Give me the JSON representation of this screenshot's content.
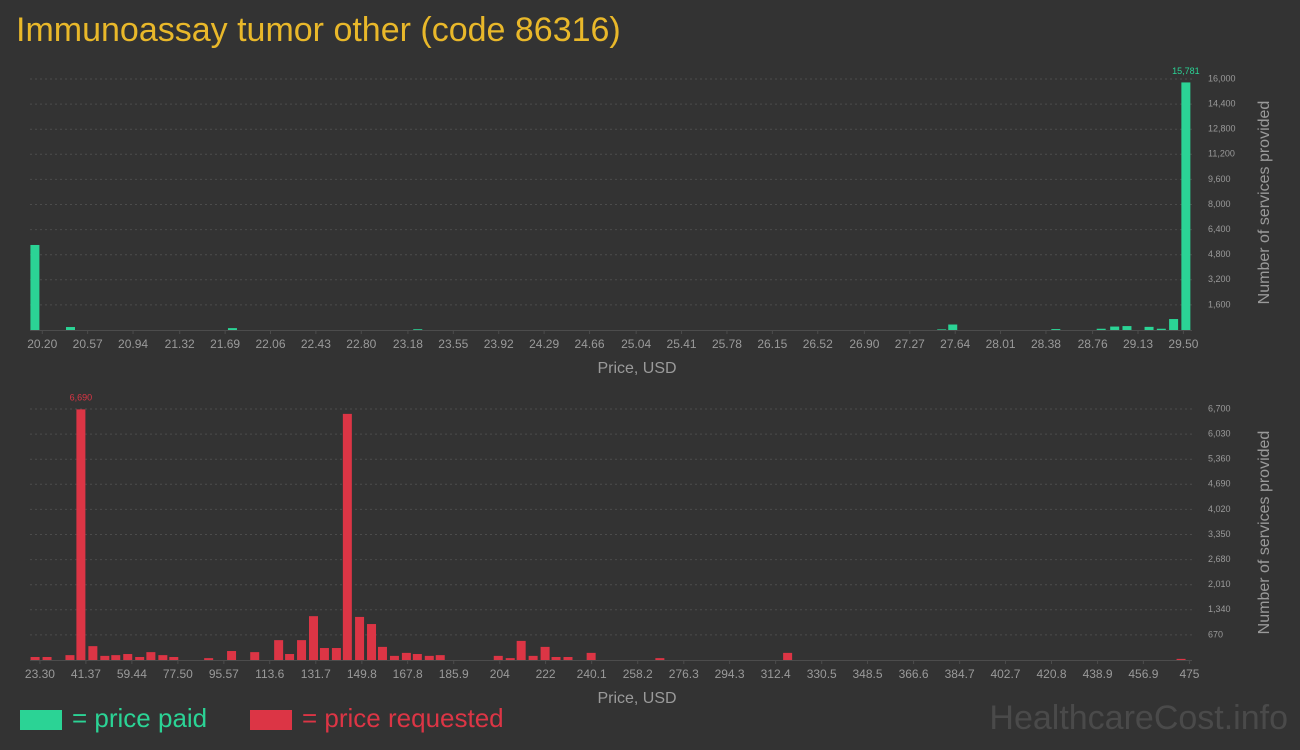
{
  "title": "Immunoassay tumor other (code 86316)",
  "watermark": "HealthcareCost.info",
  "chart_data": [
    {
      "type": "bar",
      "x_label": "Price, USD",
      "y_label": "Number of services provided",
      "xlim": [
        20.1,
        29.57
      ],
      "ylim": [
        0,
        16000
      ],
      "grid": true,
      "xticks": [
        {
          "value": 20.2,
          "label": "20.20"
        },
        20.57,
        20.94,
        21.32,
        21.69,
        22.06,
        22.43,
        {
          "value": 22.8,
          "label": "22.80"
        },
        23.18,
        23.55,
        23.92,
        24.29,
        24.66,
        25.04,
        25.41,
        25.78,
        26.15,
        26.52,
        {
          "value": 26.9,
          "label": "26.90"
        },
        27.27,
        27.64,
        28.01,
        28.38,
        28.76,
        29.13,
        {
          "value": 29.5,
          "label": "29.50"
        }
      ],
      "yticks": [
        {
          "value": 1600,
          "label": "1,600"
        },
        {
          "value": 3200,
          "label": "3,200"
        },
        {
          "value": 4800,
          "label": "4,800"
        },
        {
          "value": 6400,
          "label": "6,400"
        },
        {
          "value": 8000,
          "label": "8,000"
        },
        {
          "value": 9600,
          "label": "9,600"
        },
        {
          "value": 11200,
          "label": "11,200"
        },
        {
          "value": 12800,
          "label": "12,800"
        },
        {
          "value": 14400,
          "label": "14,400"
        },
        {
          "value": 16000,
          "label": "16,000"
        }
      ],
      "series": [
        {
          "name": "= price paid",
          "color": "#2bd395",
          "x": [
            20.14,
            20.43,
            21.75,
            23.26,
            27.53,
            27.62,
            28.46,
            28.83,
            28.94,
            29.04,
            29.22,
            29.32,
            29.42,
            29.52
          ],
          "values": [
            5420,
            190,
            120,
            50,
            40,
            350,
            60,
            80,
            220,
            250,
            200,
            80,
            700,
            15781
          ],
          "value_labels": [
            null,
            null,
            null,
            null,
            null,
            null,
            null,
            null,
            null,
            null,
            null,
            null,
            null,
            "15,781"
          ]
        }
      ]
    },
    {
      "type": "bar",
      "x_label": "Price, USD",
      "y_label": "Number of services provided",
      "xlim": [
        19.4,
        476
      ],
      "ylim": [
        0,
        6700
      ],
      "grid": true,
      "xticks": [
        {
          "value": 23.3,
          "label": "23.30"
        },
        41.37,
        59.44,
        {
          "value": 77.5,
          "label": "77.50"
        },
        95.57,
        113.6,
        131.7,
        149.8,
        167.8,
        185.9,
        204,
        222,
        240.1,
        258.2,
        276.3,
        294.3,
        312.4,
        330.5,
        348.5,
        366.6,
        384.7,
        402.7,
        420.8,
        438.9,
        456.9,
        475
      ],
      "yticks": [
        670,
        {
          "value": 1340,
          "label": "1,340"
        },
        {
          "value": 2010,
          "label": "2,010"
        },
        {
          "value": 2680,
          "label": "2,680"
        },
        {
          "value": 3350,
          "label": "3,350"
        },
        {
          "value": 4020,
          "label": "4,020"
        },
        {
          "value": 4690,
          "label": "4,690"
        },
        {
          "value": 5360,
          "label": "5,360"
        },
        {
          "value": 6030,
          "label": "6,030"
        },
        {
          "value": 6700,
          "label": "6,700"
        }
      ],
      "series": [
        {
          "name": "= price requested",
          "color": "#dc3545",
          "x": [
            21.4,
            26.1,
            35.1,
            39.4,
            44.1,
            48.8,
            53.1,
            57.8,
            62.5,
            66.9,
            71.6,
            75.9,
            89.6,
            98.6,
            107.7,
            117.1,
            121.4,
            126.1,
            130.8,
            135.1,
            139.8,
            144.1,
            148.9,
            153.6,
            157.9,
            162.6,
            167.3,
            171.6,
            176.3,
            180.6,
            203.4,
            208.1,
            212.4,
            217.1,
            221.8,
            226.1,
            230.8,
            239.9,
            266.9,
            317.1,
            471.7
          ],
          "values": [
            80,
            80,
            130,
            6690,
            370,
            110,
            130,
            160,
            80,
            210,
            130,
            80,
            50,
            240,
            210,
            530,
            160,
            530,
            1170,
            320,
            320,
            6570,
            1150,
            960,
            350,
            110,
            190,
            160,
            110,
            130,
            110,
            50,
            510,
            110,
            350,
            80,
            80,
            190,
            50,
            190,
            30
          ],
          "value_labels": [
            null,
            null,
            null,
            "6,690",
            null,
            null,
            null,
            null,
            null,
            null,
            null,
            null,
            null,
            null,
            null,
            null,
            null,
            null,
            null,
            null,
            null,
            null,
            null,
            null,
            null,
            null,
            null,
            null,
            null,
            null,
            null,
            null,
            null,
            null,
            null,
            null,
            null,
            null,
            null,
            null,
            null
          ]
        }
      ]
    }
  ]
}
